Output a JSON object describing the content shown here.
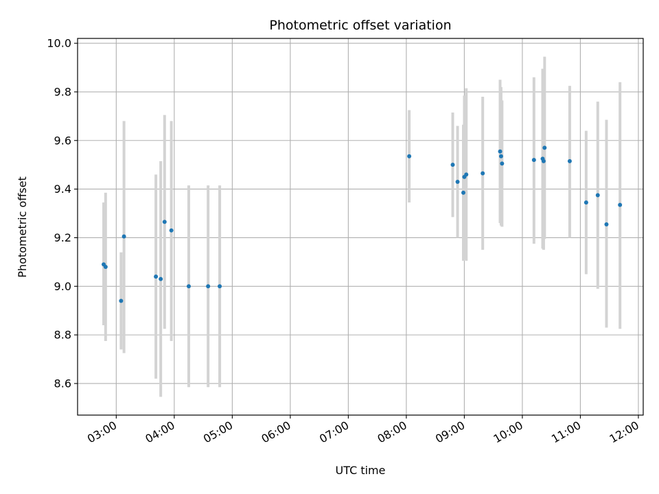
{
  "chart_data": {
    "type": "scatter",
    "title": "Photometric offset variation",
    "xlabel": "UTC time",
    "ylabel": "Photometric offset",
    "xlim": [
      "02:20",
      "12:05"
    ],
    "ylim": [
      8.47,
      10.02
    ],
    "x_ticks": [
      "03:00",
      "04:00",
      "05:00",
      "06:00",
      "07:00",
      "08:00",
      "09:00",
      "10:00",
      "11:00",
      "12:00"
    ],
    "y_ticks": [
      "8.6",
      "8.8",
      "9.0",
      "9.2",
      "9.4",
      "9.6",
      "9.8",
      "10.0"
    ],
    "grid": true,
    "colors": {
      "marker": "#1f77b4",
      "error_bar": "#d3d3d3",
      "grid": "#b0b0b0"
    },
    "points": [
      {
        "x": "02:47",
        "y": 9.09,
        "ylow": 8.84,
        "yhigh": 9.345
      },
      {
        "x": "02:49",
        "y": 9.08,
        "ylow": 8.775,
        "yhigh": 9.385
      },
      {
        "x": "03:05",
        "y": 8.94,
        "ylow": 8.74,
        "yhigh": 9.14
      },
      {
        "x": "03:08",
        "y": 9.205,
        "ylow": 8.725,
        "yhigh": 9.68
      },
      {
        "x": "03:41",
        "y": 9.04,
        "ylow": 8.62,
        "yhigh": 9.46
      },
      {
        "x": "03:46",
        "y": 9.03,
        "ylow": 8.545,
        "yhigh": 9.515
      },
      {
        "x": "03:50",
        "y": 9.265,
        "ylow": 8.825,
        "yhigh": 9.705
      },
      {
        "x": "03:57",
        "y": 9.23,
        "ylow": 8.775,
        "yhigh": 9.68
      },
      {
        "x": "04:15",
        "y": 9.0,
        "ylow": 8.585,
        "yhigh": 9.415
      },
      {
        "x": "04:35",
        "y": 9.0,
        "ylow": 8.585,
        "yhigh": 9.415
      },
      {
        "x": "04:47",
        "y": 9.0,
        "ylow": 8.585,
        "yhigh": 9.415
      },
      {
        "x": "08:03",
        "y": 9.535,
        "ylow": 9.345,
        "yhigh": 9.725
      },
      {
        "x": "08:48",
        "y": 9.5,
        "ylow": 9.285,
        "yhigh": 9.715
      },
      {
        "x": "08:53",
        "y": 9.43,
        "ylow": 9.2,
        "yhigh": 9.66
      },
      {
        "x": "08:59",
        "y": 9.385,
        "ylow": 9.105,
        "yhigh": 9.665
      },
      {
        "x": "09:00",
        "y": 9.45,
        "ylow": 9.11,
        "yhigh": 9.785
      },
      {
        "x": "09:02",
        "y": 9.46,
        "ylow": 9.105,
        "yhigh": 9.815
      },
      {
        "x": "09:19",
        "y": 9.465,
        "ylow": 9.15,
        "yhigh": 9.78
      },
      {
        "x": "09:37",
        "y": 9.555,
        "ylow": 9.26,
        "yhigh": 9.85
      },
      {
        "x": "09:38",
        "y": 9.535,
        "ylow": 9.25,
        "yhigh": 9.82
      },
      {
        "x": "09:39",
        "y": 9.505,
        "ylow": 9.245,
        "yhigh": 9.765
      },
      {
        "x": "10:12",
        "y": 9.52,
        "ylow": 9.175,
        "yhigh": 9.86
      },
      {
        "x": "10:21",
        "y": 9.525,
        "ylow": 9.155,
        "yhigh": 9.895
      },
      {
        "x": "10:22",
        "y": 9.515,
        "ylow": 9.15,
        "yhigh": 9.88
      },
      {
        "x": "10:23",
        "y": 9.57,
        "ylow": 9.195,
        "yhigh": 9.945
      },
      {
        "x": "10:49",
        "y": 9.515,
        "ylow": 9.2,
        "yhigh": 9.825
      },
      {
        "x": "11:06",
        "y": 9.345,
        "ylow": 9.05,
        "yhigh": 9.64
      },
      {
        "x": "11:18",
        "y": 9.375,
        "ylow": 8.99,
        "yhigh": 9.76
      },
      {
        "x": "11:27",
        "y": 9.255,
        "ylow": 8.83,
        "yhigh": 9.685
      },
      {
        "x": "11:41",
        "y": 9.335,
        "ylow": 8.825,
        "yhigh": 9.84
      }
    ]
  }
}
